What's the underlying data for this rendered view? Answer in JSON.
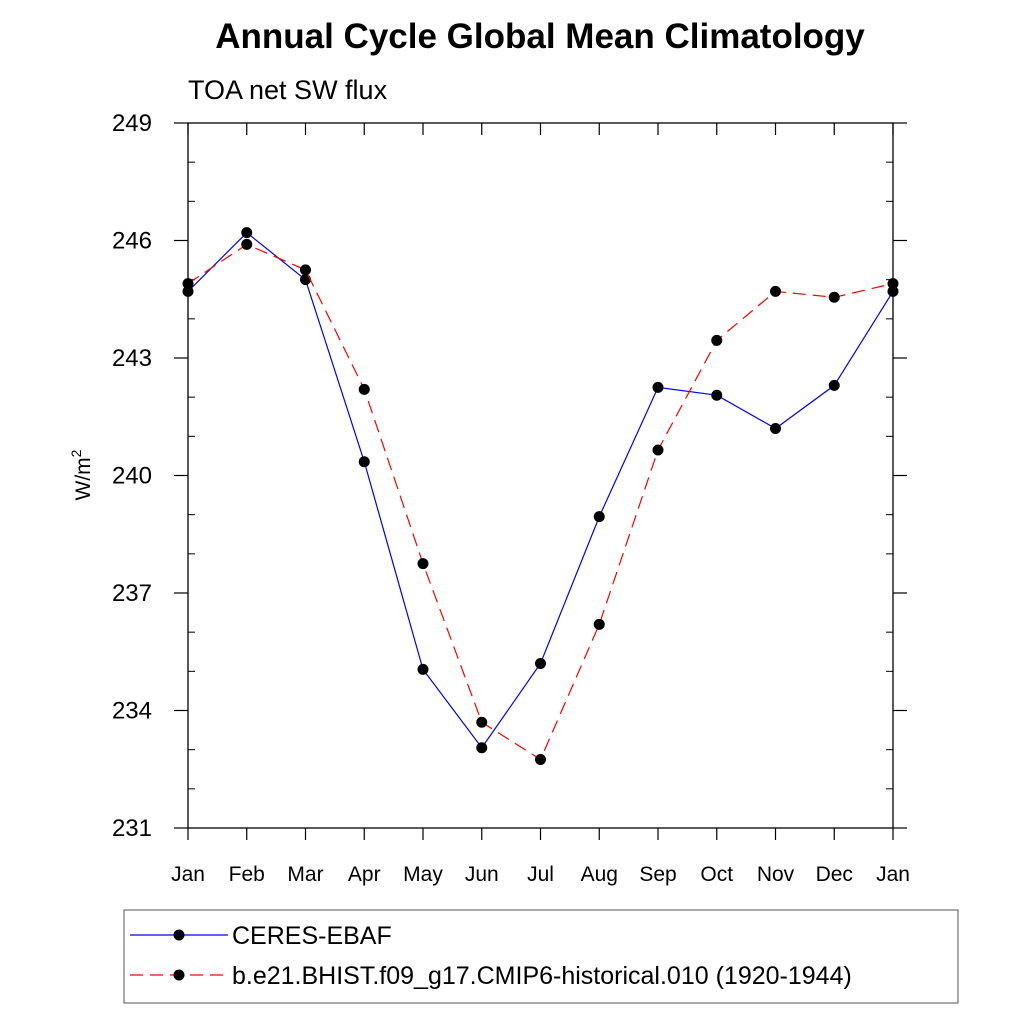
{
  "chart_data": {
    "type": "line",
    "title": "Annual Cycle Global Mean Climatology",
    "subtitle": "TOA net SW flux",
    "ylabel": "W/m",
    "ylabel_superscript": "2",
    "xlabel": "",
    "categories": [
      "Jan",
      "Feb",
      "Mar",
      "Apr",
      "May",
      "Jun",
      "Jul",
      "Aug",
      "Sep",
      "Oct",
      "Nov",
      "Dec",
      "Jan"
    ],
    "ylim": [
      231,
      249
    ],
    "yticks": [
      231,
      234,
      237,
      240,
      243,
      246,
      249
    ],
    "grid": false,
    "legend_placement": "bottom",
    "series": [
      {
        "name": "CERES-EBAF",
        "color": "#0000ff",
        "style": "solid",
        "marker": "filled-circle",
        "values": [
          244.7,
          246.2,
          245.0,
          240.35,
          235.05,
          233.05,
          235.2,
          238.95,
          242.25,
          242.05,
          241.2,
          242.3,
          244.7
        ]
      },
      {
        "name": "b.e21.BHIST.f09_g17.CMIP6-historical.010 (1920-1944)",
        "color": "#ff0000",
        "style": "dashed",
        "marker": "filled-circle",
        "values": [
          244.9,
          245.9,
          245.25,
          242.2,
          237.75,
          233.7,
          232.75,
          236.2,
          240.65,
          243.45,
          244.7,
          244.55,
          244.9
        ]
      }
    ]
  }
}
